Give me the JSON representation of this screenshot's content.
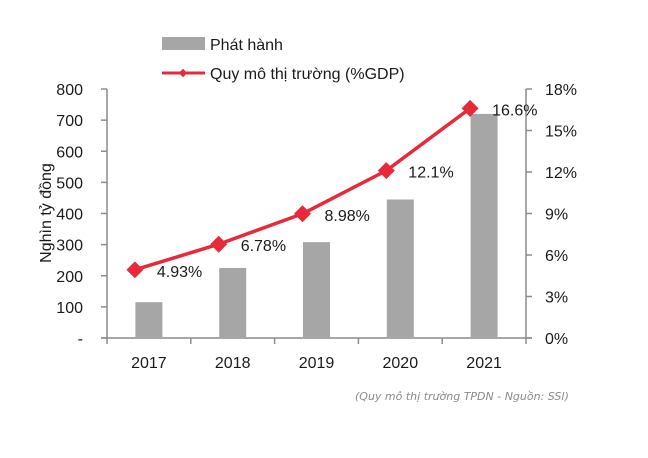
{
  "chart_data": {
    "type": "bar",
    "categories": [
      "2017",
      "2018",
      "2019",
      "2020",
      "2021"
    ],
    "series": [
      {
        "name": "Phát hành",
        "type": "bar",
        "axis": "left",
        "color": "#a6a6a6",
        "values": [
          115,
          225,
          308,
          445,
          720
        ]
      },
      {
        "name": "Quy mô thị trường (%GDP)",
        "type": "line",
        "axis": "right",
        "color": "#e8293a",
        "values": [
          4.93,
          6.78,
          8.98,
          12.1,
          16.6
        ],
        "data_labels": [
          "4.93%",
          "6.78%",
          "8.98%",
          "12.1%",
          "16.6%"
        ]
      }
    ],
    "title": "",
    "xlabel": "",
    "ylabel": "Nghìn tỷ đồng",
    "y_left": {
      "lim": [
        0,
        800
      ],
      "ticks": [
        0,
        100,
        200,
        300,
        400,
        500,
        600,
        700,
        800
      ],
      "tick_labels": [
        "-",
        "100",
        "200",
        "300",
        "400",
        "500",
        "600",
        "700",
        "800"
      ]
    },
    "y_right": {
      "lim": [
        0,
        18
      ],
      "ticks": [
        0,
        3,
        6,
        9,
        12,
        15,
        18
      ],
      "tick_labels": [
        "0%",
        "3%",
        "6%",
        "9%",
        "12%",
        "15%",
        "18%"
      ]
    },
    "grid": false,
    "legend": {
      "placement": "top-left",
      "entries": [
        "Phát hành",
        "Quy mô thị trường (%GDP)"
      ]
    }
  },
  "caption": "(Quy mô thị trường TPDN - Nguồn: SSI)"
}
